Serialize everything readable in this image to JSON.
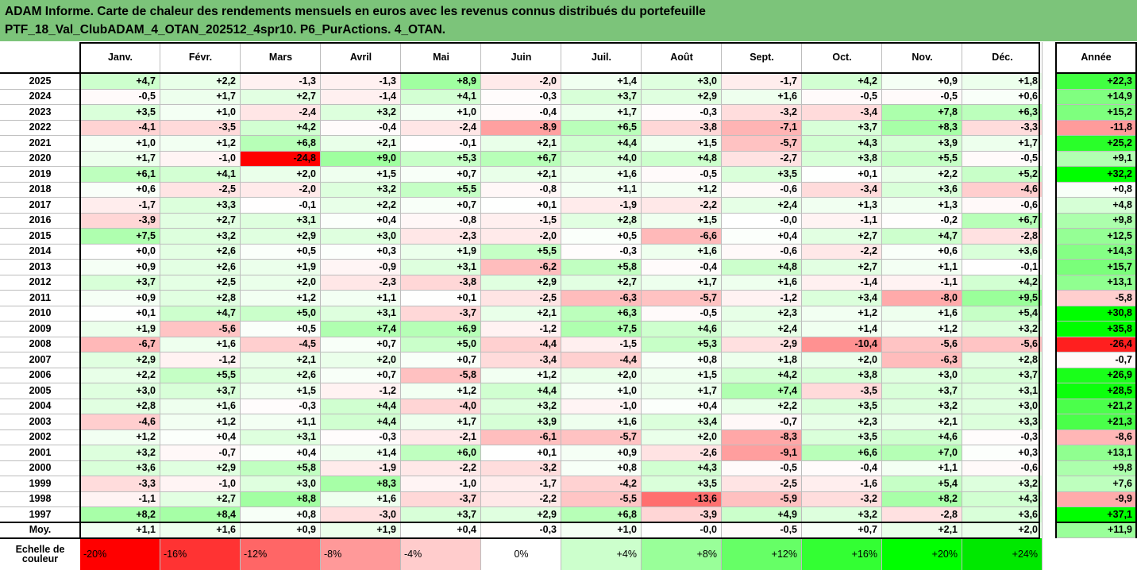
{
  "title": {
    "line1": "ADAM Informe. Carte de chaleur des rendements mensuels en euros avec les revenus connus distribués du portefeuille",
    "line2": "PTF_18_Val_ClubADAM_4_OTAN_202512_4spr10. P6_PurActions. 4_OTAN."
  },
  "chart_data": {
    "type": "heatmap",
    "months": [
      "Janv.",
      "Févr.",
      "Mars",
      "Avril",
      "Mai",
      "Juin",
      "Juil.",
      "Août",
      "Sept.",
      "Oct.",
      "Nov.",
      "Déc."
    ],
    "annual_header": "Année",
    "rows": [
      {
        "year": "2025",
        "values": [
          "+4,7",
          "+2,2",
          "-1,3",
          "-1,3",
          "+8,9",
          "-2,0",
          "+1,4",
          "+3,0",
          "-1,7",
          "+4,2",
          "+0,9",
          "+1,8"
        ],
        "annual": "+22,3"
      },
      {
        "year": "2024",
        "values": [
          "-0,5",
          "+1,7",
          "+2,7",
          "-1,4",
          "+4,1",
          "-0,3",
          "+3,7",
          "+2,9",
          "+1,6",
          "-0,5",
          "-0,5",
          "+0,6"
        ],
        "annual": "+14,9"
      },
      {
        "year": "2023",
        "values": [
          "+3,5",
          "+1,0",
          "-2,4",
          "+3,2",
          "+1,0",
          "-0,4",
          "+1,7",
          "-0,3",
          "-3,2",
          "-3,4",
          "+7,8",
          "+6,3"
        ],
        "annual": "+15,2"
      },
      {
        "year": "2022",
        "values": [
          "-4,1",
          "-3,5",
          "+4,2",
          "-0,4",
          "-2,4",
          "-8,9",
          "+6,5",
          "-3,8",
          "-7,1",
          "+3,7",
          "+8,3",
          "-3,3"
        ],
        "annual": "-11,8"
      },
      {
        "year": "2021",
        "values": [
          "+1,0",
          "+1,2",
          "+6,8",
          "+2,1",
          "-0,1",
          "+2,1",
          "+4,4",
          "+1,5",
          "-5,7",
          "+4,3",
          "+3,9",
          "+1,7"
        ],
        "annual": "+25,2"
      },
      {
        "year": "2020",
        "values": [
          "+1,7",
          "-1,0",
          "-24,8",
          "+9,0",
          "+5,3",
          "+6,7",
          "+4,0",
          "+4,8",
          "-2,7",
          "+3,8",
          "+5,5",
          "-0,5"
        ],
        "annual": "+9,1"
      },
      {
        "year": "2019",
        "values": [
          "+6,1",
          "+4,1",
          "+2,0",
          "+1,5",
          "+0,7",
          "+2,1",
          "+1,6",
          "-0,5",
          "+3,5",
          "+0,1",
          "+2,2",
          "+5,2"
        ],
        "annual": "+32,2"
      },
      {
        "year": "2018",
        "values": [
          "+0,6",
          "-2,5",
          "-2,0",
          "+3,2",
          "+5,5",
          "-0,8",
          "+1,1",
          "+1,2",
          "-0,6",
          "-3,4",
          "+3,6",
          "-4,6"
        ],
        "annual": "+0,8"
      },
      {
        "year": "2017",
        "values": [
          "-1,7",
          "+3,3",
          "-0,1",
          "+2,2",
          "+0,7",
          "+0,1",
          "-1,9",
          "-2,2",
          "+2,4",
          "+1,3",
          "+1,3",
          "-0,6"
        ],
        "annual": "+4,8"
      },
      {
        "year": "2016",
        "values": [
          "-3,9",
          "+2,7",
          "+3,1",
          "+0,4",
          "-0,8",
          "-1,5",
          "+2,8",
          "+1,5",
          "-0,0",
          "-1,1",
          "-0,2",
          "+6,7"
        ],
        "annual": "+9,8"
      },
      {
        "year": "2015",
        "values": [
          "+7,5",
          "+3,2",
          "+2,9",
          "+3,0",
          "-2,3",
          "-2,0",
          "+0,5",
          "-6,6",
          "+0,4",
          "+2,7",
          "+4,7",
          "-2,8"
        ],
        "annual": "+12,5"
      },
      {
        "year": "2014",
        "values": [
          "+0,0",
          "+2,6",
          "+0,5",
          "+0,3",
          "+1,9",
          "+5,5",
          "-0,3",
          "+1,6",
          "-0,6",
          "-2,2",
          "+0,6",
          "+3,6"
        ],
        "annual": "+14,3"
      },
      {
        "year": "2013",
        "values": [
          "+0,9",
          "+2,6",
          "+1,9",
          "-0,9",
          "+3,1",
          "-6,2",
          "+5,8",
          "-0,4",
          "+4,8",
          "+2,7",
          "+1,1",
          "-0,1"
        ],
        "annual": "+15,7"
      },
      {
        "year": "2012",
        "values": [
          "+3,7",
          "+2,5",
          "+2,0",
          "-2,3",
          "-3,8",
          "+2,9",
          "+2,7",
          "+1,7",
          "+1,6",
          "-1,4",
          "-1,1",
          "+4,2"
        ],
        "annual": "+13,1"
      },
      {
        "year": "2011",
        "values": [
          "+0,9",
          "+2,8",
          "+1,2",
          "+1,1",
          "+0,1",
          "-2,5",
          "-6,3",
          "-5,7",
          "-1,2",
          "+3,4",
          "-8,0",
          "+9,5"
        ],
        "annual": "-5,8"
      },
      {
        "year": "2010",
        "values": [
          "+0,1",
          "+4,7",
          "+5,0",
          "+3,1",
          "-3,7",
          "+2,1",
          "+6,3",
          "-0,5",
          "+2,3",
          "+1,2",
          "+1,6",
          "+5,4"
        ],
        "annual": "+30,8"
      },
      {
        "year": "2009",
        "values": [
          "+1,9",
          "-5,6",
          "+0,5",
          "+7,4",
          "+6,9",
          "-1,2",
          "+7,5",
          "+4,6",
          "+2,4",
          "+1,4",
          "+1,2",
          "+3,2"
        ],
        "annual": "+35,8"
      },
      {
        "year": "2008",
        "values": [
          "-6,7",
          "+1,6",
          "-4,5",
          "+0,7",
          "+5,0",
          "-4,4",
          "-1,5",
          "+5,3",
          "-2,9",
          "-10,4",
          "-5,6",
          "-5,6"
        ],
        "annual": "-26,4"
      },
      {
        "year": "2007",
        "values": [
          "+2,9",
          "-1,2",
          "+2,1",
          "+2,0",
          "+0,7",
          "-3,4",
          "-4,4",
          "+0,8",
          "+1,8",
          "+2,0",
          "-6,3",
          "+2,8"
        ],
        "annual": "-0,7"
      },
      {
        "year": "2006",
        "values": [
          "+2,2",
          "+5,5",
          "+2,6",
          "+0,7",
          "-5,8",
          "+1,2",
          "+2,0",
          "+1,5",
          "+4,2",
          "+3,8",
          "+3,0",
          "+3,7"
        ],
        "annual": "+26,9"
      },
      {
        "year": "2005",
        "values": [
          "+3,0",
          "+3,7",
          "+1,5",
          "-1,2",
          "+1,2",
          "+4,4",
          "+1,0",
          "+1,7",
          "+7,4",
          "-3,5",
          "+3,7",
          "+3,1"
        ],
        "annual": "+28,5"
      },
      {
        "year": "2004",
        "values": [
          "+2,8",
          "+1,6",
          "-0,3",
          "+4,4",
          "-4,0",
          "+3,2",
          "-1,0",
          "+0,4",
          "+2,2",
          "+3,5",
          "+3,2",
          "+3,0"
        ],
        "annual": "+21,2"
      },
      {
        "year": "2003",
        "values": [
          "-4,6",
          "+1,2",
          "+1,1",
          "+4,4",
          "+1,7",
          "+3,9",
          "+1,6",
          "+3,4",
          "-0,7",
          "+2,3",
          "+2,1",
          "+3,3"
        ],
        "annual": "+21,3"
      },
      {
        "year": "2002",
        "values": [
          "+1,2",
          "+0,4",
          "+3,1",
          "-0,3",
          "-2,1",
          "-6,1",
          "-5,7",
          "+2,0",
          "-8,3",
          "+3,5",
          "+4,6",
          "-0,3"
        ],
        "annual": "-8,6"
      },
      {
        "year": "2001",
        "values": [
          "+3,2",
          "-0,7",
          "+0,4",
          "+1,4",
          "+6,0",
          "+0,1",
          "+0,9",
          "-2,6",
          "-9,1",
          "+6,6",
          "+7,0",
          "+0,3"
        ],
        "annual": "+13,1"
      },
      {
        "year": "2000",
        "values": [
          "+3,6",
          "+2,9",
          "+5,8",
          "-1,9",
          "-2,2",
          "-3,2",
          "+0,8",
          "+4,3",
          "-0,5",
          "-0,4",
          "+1,1",
          "-0,6"
        ],
        "annual": "+9,8"
      },
      {
        "year": "1999",
        "values": [
          "-3,3",
          "-1,0",
          "+3,0",
          "+8,3",
          "-1,0",
          "-1,7",
          "-4,2",
          "+3,5",
          "-2,5",
          "-1,6",
          "+5,4",
          "+3,2"
        ],
        "annual": "+7,6"
      },
      {
        "year": "1998",
        "values": [
          "-1,1",
          "+2,7",
          "+8,8",
          "+1,6",
          "-3,7",
          "-2,2",
          "-5,5",
          "-13,6",
          "-5,9",
          "-3,2",
          "+8,2",
          "+4,3"
        ],
        "annual": "-9,9"
      },
      {
        "year": "1997",
        "values": [
          "+8,2",
          "+8,4",
          "+0,8",
          "-3,0",
          "+3,7",
          "+2,9",
          "+6,8",
          "-3,9",
          "+4,9",
          "+3,2",
          "-2,8",
          "+3,6"
        ],
        "annual": "+37,1"
      }
    ],
    "average": {
      "label": "Moy.",
      "values": [
        "+1,1",
        "+1,6",
        "+0,9",
        "+1,9",
        "+0,4",
        "-0,3",
        "+1,0",
        "-0,0",
        "-0,5",
        "+0,7",
        "+2,1",
        "+2,0"
      ],
      "annual": "+11,9"
    },
    "scale": {
      "label": "Echelle de couleur",
      "steps": [
        {
          "text": "-20%",
          "value": -20,
          "color": "#ff0000"
        },
        {
          "text": "-16%",
          "value": -16,
          "color": "#ff3333"
        },
        {
          "text": "-12%",
          "value": -12,
          "color": "#ff6666"
        },
        {
          "text": "-8%",
          "value": -8,
          "color": "#ff9999"
        },
        {
          "text": "-4%",
          "value": -4,
          "color": "#ffcccc"
        },
        {
          "text": "0%",
          "value": 0,
          "color": "#ffffff"
        },
        {
          "text": "+4%",
          "value": 4,
          "color": "#ccffcc"
        },
        {
          "text": "+8%",
          "value": 8,
          "color": "#99ff99"
        },
        {
          "text": "+12%",
          "value": 12,
          "color": "#66ff66"
        },
        {
          "text": "+16%",
          "value": 16,
          "color": "#33ff33"
        },
        {
          "text": "+20%",
          "value": 20,
          "color": "#00ff00"
        },
        {
          "text": "+24%",
          "value": 24,
          "color": "#00e800"
        }
      ]
    }
  },
  "colors": {
    "title_bg": "#7cc47a",
    "neg_full": "#ff0000",
    "pos_full": "#00ff00",
    "grid": "#bdbdbd"
  }
}
